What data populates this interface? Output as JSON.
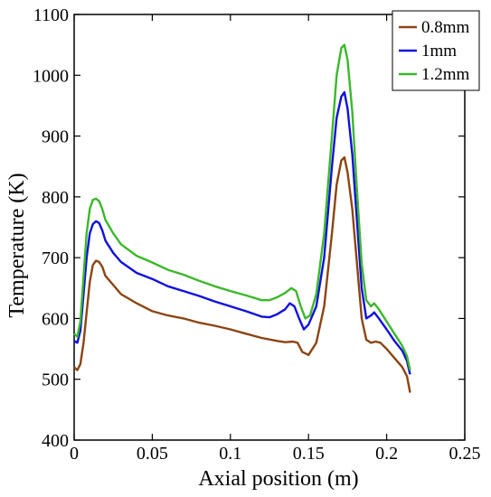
{
  "chart_data": {
    "type": "line",
    "xlabel": "Axial position (m)",
    "ylabel": "Temperature (K)",
    "xlim": [
      0,
      0.25
    ],
    "ylim": [
      400,
      1100
    ],
    "x_ticks": [
      "0",
      "0.05",
      "0.1",
      "0.15",
      "0.2",
      "0.25"
    ],
    "y_ticks": [
      "400",
      "500",
      "600",
      "700",
      "800",
      "900",
      "1000",
      "1100"
    ],
    "grid": false,
    "legend_position": "top-right",
    "series": [
      {
        "name": "0.8mm",
        "color": "#8B4513",
        "points": [
          [
            0.0,
            520
          ],
          [
            0.002,
            515
          ],
          [
            0.004,
            525
          ],
          [
            0.006,
            560
          ],
          [
            0.008,
            610
          ],
          [
            0.01,
            660
          ],
          [
            0.012,
            688
          ],
          [
            0.014,
            695
          ],
          [
            0.016,
            693
          ],
          [
            0.018,
            685
          ],
          [
            0.02,
            670
          ],
          [
            0.025,
            655
          ],
          [
            0.03,
            640
          ],
          [
            0.04,
            625
          ],
          [
            0.05,
            612
          ],
          [
            0.06,
            605
          ],
          [
            0.07,
            600
          ],
          [
            0.08,
            593
          ],
          [
            0.09,
            588
          ],
          [
            0.1,
            582
          ],
          [
            0.11,
            575
          ],
          [
            0.12,
            568
          ],
          [
            0.13,
            563
          ],
          [
            0.135,
            561
          ],
          [
            0.14,
            562
          ],
          [
            0.143,
            560
          ],
          [
            0.146,
            545
          ],
          [
            0.15,
            540
          ],
          [
            0.155,
            560
          ],
          [
            0.16,
            620
          ],
          [
            0.165,
            740
          ],
          [
            0.168,
            820
          ],
          [
            0.171,
            860
          ],
          [
            0.173,
            865
          ],
          [
            0.175,
            840
          ],
          [
            0.178,
            780
          ],
          [
            0.181,
            690
          ],
          [
            0.184,
            600
          ],
          [
            0.187,
            565
          ],
          [
            0.19,
            560
          ],
          [
            0.193,
            562
          ],
          [
            0.196,
            560
          ],
          [
            0.2,
            550
          ],
          [
            0.205,
            535
          ],
          [
            0.21,
            520
          ],
          [
            0.213,
            505
          ],
          [
            0.215,
            478
          ]
        ]
      },
      {
        "name": "1mm",
        "color": "#1010DD",
        "points": [
          [
            0.0,
            563
          ],
          [
            0.002,
            560
          ],
          [
            0.004,
            580
          ],
          [
            0.006,
            640
          ],
          [
            0.008,
            700
          ],
          [
            0.01,
            740
          ],
          [
            0.012,
            755
          ],
          [
            0.014,
            760
          ],
          [
            0.016,
            757
          ],
          [
            0.018,
            745
          ],
          [
            0.02,
            728
          ],
          [
            0.025,
            708
          ],
          [
            0.03,
            693
          ],
          [
            0.04,
            675
          ],
          [
            0.05,
            665
          ],
          [
            0.06,
            653
          ],
          [
            0.07,
            645
          ],
          [
            0.08,
            637
          ],
          [
            0.09,
            628
          ],
          [
            0.1,
            620
          ],
          [
            0.11,
            612
          ],
          [
            0.12,
            603
          ],
          [
            0.125,
            602
          ],
          [
            0.13,
            607
          ],
          [
            0.135,
            615
          ],
          [
            0.138,
            625
          ],
          [
            0.141,
            620
          ],
          [
            0.144,
            600
          ],
          [
            0.147,
            582
          ],
          [
            0.15,
            590
          ],
          [
            0.155,
            620
          ],
          [
            0.16,
            700
          ],
          [
            0.165,
            850
          ],
          [
            0.168,
            930
          ],
          [
            0.171,
            965
          ],
          [
            0.173,
            972
          ],
          [
            0.175,
            945
          ],
          [
            0.178,
            870
          ],
          [
            0.181,
            760
          ],
          [
            0.184,
            650
          ],
          [
            0.187,
            600
          ],
          [
            0.19,
            605
          ],
          [
            0.192,
            610
          ],
          [
            0.195,
            600
          ],
          [
            0.2,
            582
          ],
          [
            0.205,
            563
          ],
          [
            0.21,
            547
          ],
          [
            0.213,
            530
          ],
          [
            0.215,
            508
          ]
        ]
      },
      {
        "name": "1.2mm",
        "color": "#3CB82A",
        "points": [
          [
            0.0,
            575
          ],
          [
            0.002,
            570
          ],
          [
            0.004,
            595
          ],
          [
            0.006,
            670
          ],
          [
            0.008,
            740
          ],
          [
            0.01,
            780
          ],
          [
            0.012,
            795
          ],
          [
            0.014,
            797
          ],
          [
            0.016,
            793
          ],
          [
            0.018,
            780
          ],
          [
            0.02,
            762
          ],
          [
            0.025,
            740
          ],
          [
            0.03,
            722
          ],
          [
            0.04,
            703
          ],
          [
            0.05,
            692
          ],
          [
            0.06,
            680
          ],
          [
            0.07,
            672
          ],
          [
            0.08,
            662
          ],
          [
            0.09,
            653
          ],
          [
            0.1,
            645
          ],
          [
            0.11,
            638
          ],
          [
            0.12,
            630
          ],
          [
            0.125,
            630
          ],
          [
            0.13,
            635
          ],
          [
            0.135,
            642
          ],
          [
            0.139,
            650
          ],
          [
            0.142,
            645
          ],
          [
            0.145,
            620
          ],
          [
            0.148,
            600
          ],
          [
            0.151,
            605
          ],
          [
            0.155,
            640
          ],
          [
            0.16,
            740
          ],
          [
            0.165,
            900
          ],
          [
            0.168,
            1000
          ],
          [
            0.171,
            1045
          ],
          [
            0.173,
            1050
          ],
          [
            0.175,
            1025
          ],
          [
            0.178,
            940
          ],
          [
            0.181,
            810
          ],
          [
            0.184,
            690
          ],
          [
            0.187,
            630
          ],
          [
            0.19,
            620
          ],
          [
            0.192,
            625
          ],
          [
            0.195,
            615
          ],
          [
            0.2,
            595
          ],
          [
            0.205,
            575
          ],
          [
            0.21,
            555
          ],
          [
            0.213,
            538
          ],
          [
            0.215,
            515
          ]
        ]
      }
    ]
  }
}
